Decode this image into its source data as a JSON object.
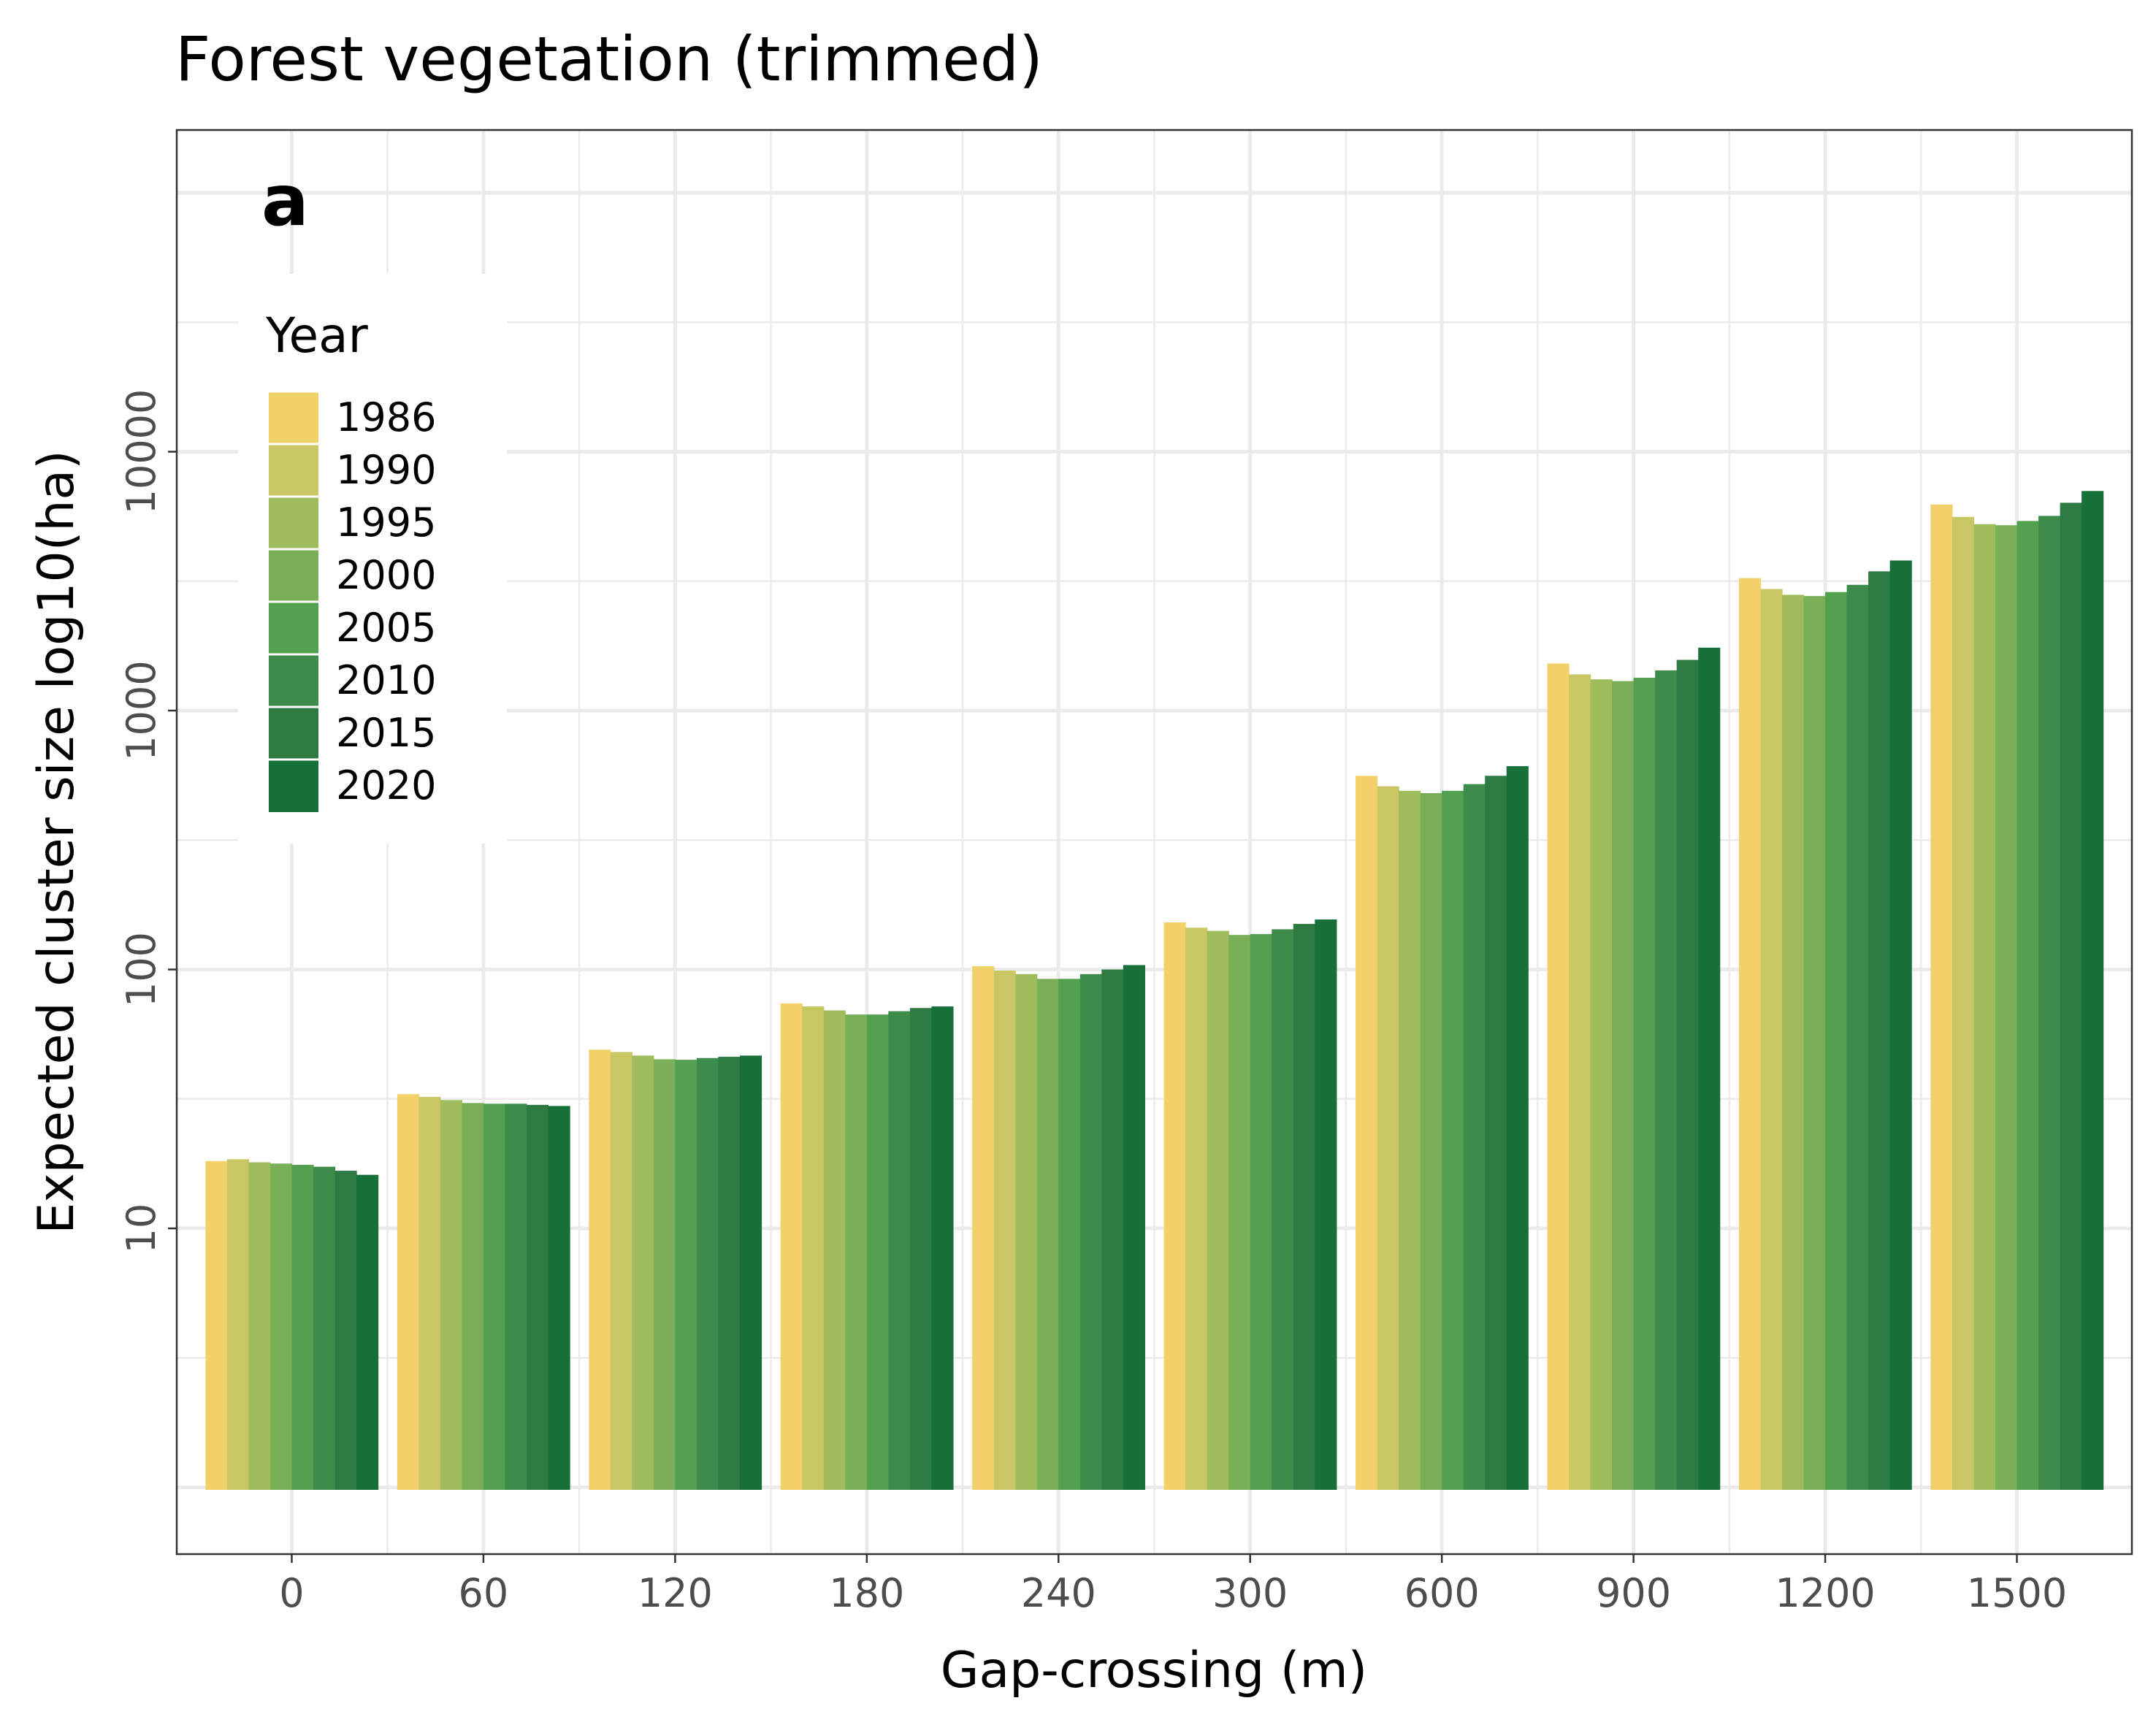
{
  "chart_data": {
    "type": "bar",
    "title": "Forest vegetation (trimmed)",
    "panel_label": "a",
    "xlabel": "Gap-crossing (m)",
    "ylabel": "Expected cluster size log10(ha)",
    "y_scale": "log10",
    "ylim": [
      0.75,
      150000
    ],
    "yticks": [
      10,
      100,
      1000,
      10000
    ],
    "ytick_labels": [
      "10",
      "100",
      "1000",
      "10000"
    ],
    "grid": true,
    "legend": {
      "title": "Year",
      "position": "top-left"
    },
    "categories": [
      "0",
      "60",
      "120",
      "180",
      "240",
      "300",
      "600",
      "900",
      "1200",
      "1500"
    ],
    "series": [
      {
        "name": "1986",
        "color": "#F2D16B",
        "values": [
          18.2,
          33.0,
          49.0,
          74.0,
          103,
          152,
          560,
          1520,
          3250,
          6250
        ]
      },
      {
        "name": "1990",
        "color": "#C9C764",
        "values": [
          18.5,
          32.2,
          48.0,
          72.0,
          99,
          145,
          510,
          1380,
          2950,
          5600
        ]
      },
      {
        "name": "1995",
        "color": "#A0BC5C",
        "values": [
          18.0,
          31.3,
          46.5,
          69.5,
          96,
          141,
          490,
          1320,
          2800,
          5250
        ]
      },
      {
        "name": "2000",
        "color": "#78AF57",
        "values": [
          17.8,
          30.5,
          45.0,
          67.0,
          92,
          136,
          480,
          1300,
          2770,
          5200
        ]
      },
      {
        "name": "2005",
        "color": "#52A050",
        "values": [
          17.6,
          30.3,
          44.8,
          67.0,
          92,
          137,
          490,
          1340,
          2870,
          5400
        ]
      },
      {
        "name": "2010",
        "color": "#3E8C4B",
        "values": [
          17.3,
          30.3,
          45.5,
          69.0,
          96,
          143,
          520,
          1430,
          3060,
          5650
        ]
      },
      {
        "name": "2015",
        "color": "#2D7A43",
        "values": [
          16.7,
          30.0,
          46.0,
          71.0,
          100,
          150,
          560,
          1570,
          3450,
          6350
        ]
      },
      {
        "name": "2020",
        "color": "#176F39",
        "values": [
          16.1,
          29.7,
          46.5,
          72.0,
          104,
          156,
          610,
          1750,
          3800,
          7050
        ]
      }
    ]
  }
}
